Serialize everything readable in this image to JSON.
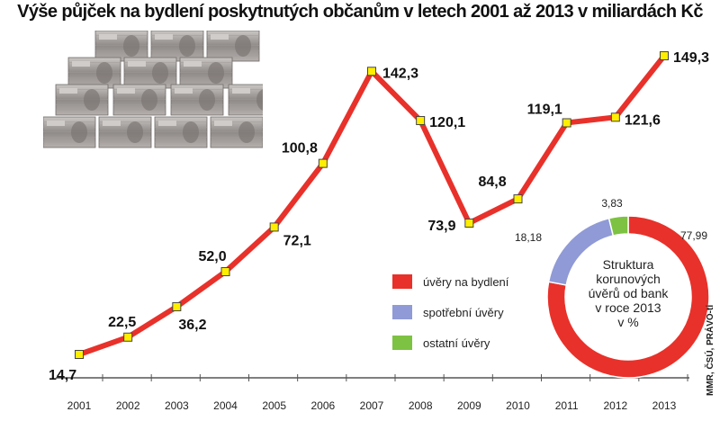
{
  "title": "Výše půjček na bydlení poskytnutých občanům v letech 2001 až 2013 v miliardách Kč",
  "source": "MMR, ČSÚ, PRÁVO-ti",
  "colors": {
    "line": "#e8312a",
    "marker_fill": "#ffee00",
    "marker_stroke": "#444444",
    "axis": "#555555"
  },
  "chart_data": [
    {
      "type": "line",
      "title": "Výše půjček na bydlení poskytnutých občanům v letech 2001 až 2013 v miliardách Kč",
      "x": [
        "2001",
        "2002",
        "2003",
        "2004",
        "2005",
        "2006",
        "2007",
        "2008",
        "2009",
        "2010",
        "2011",
        "2012",
        "2013"
      ],
      "values": [
        14.7,
        22.5,
        36.2,
        52.0,
        72.1,
        100.8,
        142.3,
        120.1,
        73.9,
        84.8,
        119.1,
        121.6,
        149.3
      ],
      "labels": [
        "14,7",
        "22,5",
        "36,2",
        "52,0",
        "72,1",
        "100,8",
        "142,3",
        "120,1",
        "73,9",
        "84,8",
        "119,1",
        "121,6",
        "149,3"
      ],
      "ylim": [
        0,
        160
      ],
      "grid": false
    },
    {
      "type": "pie",
      "title": "Struktura korunových úvěrů od bank v roce 2013 v %",
      "categories": [
        "úvěry na bydlení",
        "spotřební úvěry",
        "ostatní úvěry"
      ],
      "values": [
        77.99,
        18.18,
        3.83
      ],
      "labels": [
        "77,99",
        "18,18",
        "3,83"
      ],
      "colors": [
        "#e8312a",
        "#8f9ad6",
        "#7dc242"
      ],
      "legend_placement": "left of donut"
    }
  ],
  "donut_center": [
    "Struktura",
    "korunových",
    "úvěrů od bank",
    "v roce 2013",
    "v %"
  ]
}
